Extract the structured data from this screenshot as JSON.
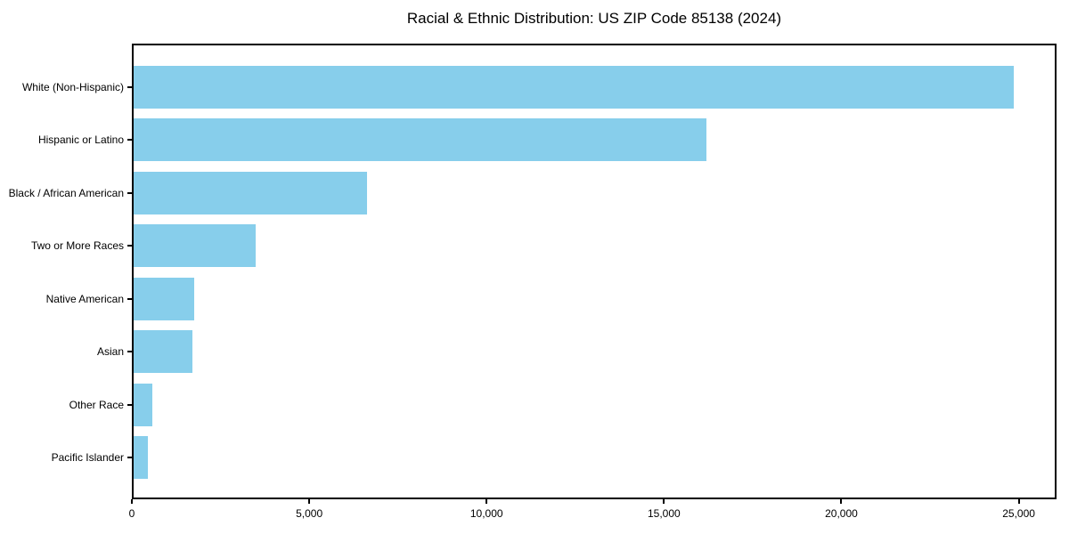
{
  "chart_data": {
    "type": "bar",
    "orientation": "horizontal",
    "title": "Racial & Ethnic Distribution: US ZIP Code 85138 (2024)",
    "categories": [
      "White (Non-Hispanic)",
      "Hispanic or Latino",
      "Black / African American",
      "Two or More Races",
      "Native American",
      "Asian",
      "Other Race",
      "Pacific Islander"
    ],
    "values": [
      24820,
      16150,
      6580,
      3440,
      1710,
      1660,
      530,
      390
    ],
    "bar_color": "#87CEEB",
    "xlabel": "",
    "ylabel": "",
    "xlim": [
      0,
      26065
    ],
    "x_ticks": [
      0,
      5000,
      10000,
      15000,
      20000,
      25000
    ],
    "x_tick_labels": [
      "0",
      "5,000",
      "10,000",
      "15,000",
      "20,000",
      "25,000"
    ],
    "grid": false,
    "legend": null,
    "frame": "full-box"
  }
}
